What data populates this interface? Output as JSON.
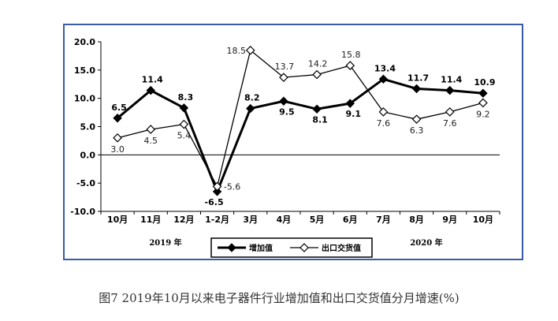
{
  "chart_data": {
    "type": "line",
    "categories": [
      "10月",
      "11月",
      "12月",
      "1-2月",
      "3月",
      "4月",
      "5月",
      "6月",
      "7月",
      "8月",
      "9月",
      "10月"
    ],
    "series": [
      {
        "name": "增加值",
        "values": [
          6.5,
          11.4,
          8.3,
          -6.5,
          8.2,
          9.5,
          8.1,
          9.1,
          13.4,
          11.7,
          11.4,
          10.9
        ],
        "color": "#000000",
        "marker": "filled-diamond"
      },
      {
        "name": "出口交货值",
        "values": [
          3.0,
          4.5,
          5.4,
          -5.6,
          18.5,
          13.7,
          14.2,
          15.8,
          7.6,
          6.3,
          7.6,
          9.2
        ],
        "color": "#000000",
        "marker": "hollow-diamond"
      }
    ],
    "ylim": [
      -10.0,
      20.0
    ],
    "yticks": [
      "20.0",
      "15.0",
      "10.0",
      "5.0",
      "0.0",
      "-5.0",
      "-10.0"
    ],
    "year_labels": [
      "2019 年",
      "2020 年"
    ],
    "legend_placement": "bottom-center",
    "grid": false
  },
  "caption": "图7 2019年10月以来电子器件行业增加值和出口交货值分月增速(%)"
}
